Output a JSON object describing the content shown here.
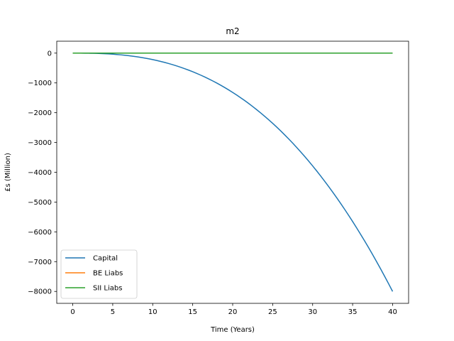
{
  "chart_data": {
    "type": "line",
    "title": "m2",
    "xlabel": "Time (Years)",
    "ylabel": "£s (Million)",
    "xlim": [
      -2,
      42
    ],
    "ylim": [
      -8400,
      400
    ],
    "xticks": [
      0,
      5,
      10,
      15,
      20,
      25,
      30,
      35,
      40
    ],
    "yticks": [
      0,
      -1000,
      -2000,
      -3000,
      -4000,
      -5000,
      -6000,
      -7000,
      -8000
    ],
    "ytick_labels": [
      "0",
      "−1000",
      "−2000",
      "−3000",
      "−4000",
      "−5000",
      "−6000",
      "−7000",
      "−8000"
    ],
    "grid": false,
    "legend_position": "lower-left",
    "series": [
      {
        "name": "Capital",
        "color": "#1f77b4",
        "x": [
          0,
          5,
          10,
          15,
          20,
          25,
          30,
          35,
          40
        ],
        "y": [
          0,
          -20,
          -140,
          -480,
          -1130,
          -2150,
          -3500,
          -5440,
          -8000
        ]
      },
      {
        "name": "BE Liabs",
        "color": "#ff7f0e",
        "x": [
          0,
          5,
          10,
          15,
          20,
          25,
          30,
          35,
          40
        ],
        "y": [
          0,
          0,
          0,
          0,
          0,
          0,
          0,
          0,
          0
        ]
      },
      {
        "name": "SII Liabs",
        "color": "#2ca02c",
        "x": [
          0,
          5,
          10,
          15,
          20,
          25,
          30,
          35,
          40
        ],
        "y": [
          0,
          0,
          0,
          0,
          0,
          0,
          0,
          0,
          0
        ]
      }
    ]
  }
}
